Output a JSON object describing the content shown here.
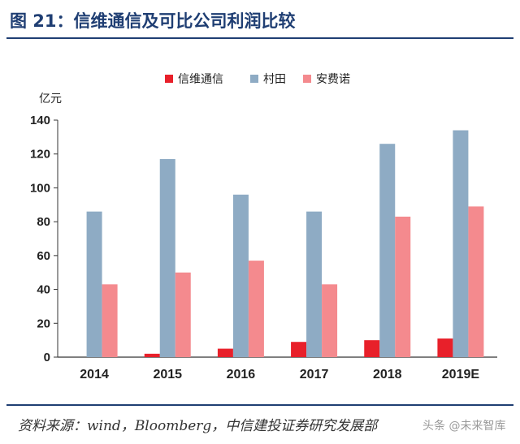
{
  "header": {
    "title": "图 21：信维通信及可比公司利润比较"
  },
  "footer": {
    "source": "资料来源：wind，Bloomberg，中信建投证券研究发展部",
    "watermark": "头条 @未来智库"
  },
  "chart_data": {
    "type": "bar",
    "categories": [
      "2014",
      "2015",
      "2016",
      "2017",
      "2018",
      "2019E"
    ],
    "series": [
      {
        "name": "信维通信",
        "values": [
          0,
          2,
          5,
          9,
          10,
          11
        ],
        "color": "#e8202a"
      },
      {
        "name": "村田",
        "values": [
          86,
          117,
          96,
          86,
          126,
          134
        ],
        "color": "#8eabc4"
      },
      {
        "name": "安费诺",
        "values": [
          43,
          50,
          57,
          43,
          83,
          89
        ],
        "color": "#f48a8e"
      }
    ],
    "ylabel": "亿元",
    "ylim": [
      0,
      140
    ],
    "yticks": [
      0,
      20,
      40,
      60,
      80,
      100,
      120,
      140
    ],
    "grid": false,
    "legend": "top"
  }
}
